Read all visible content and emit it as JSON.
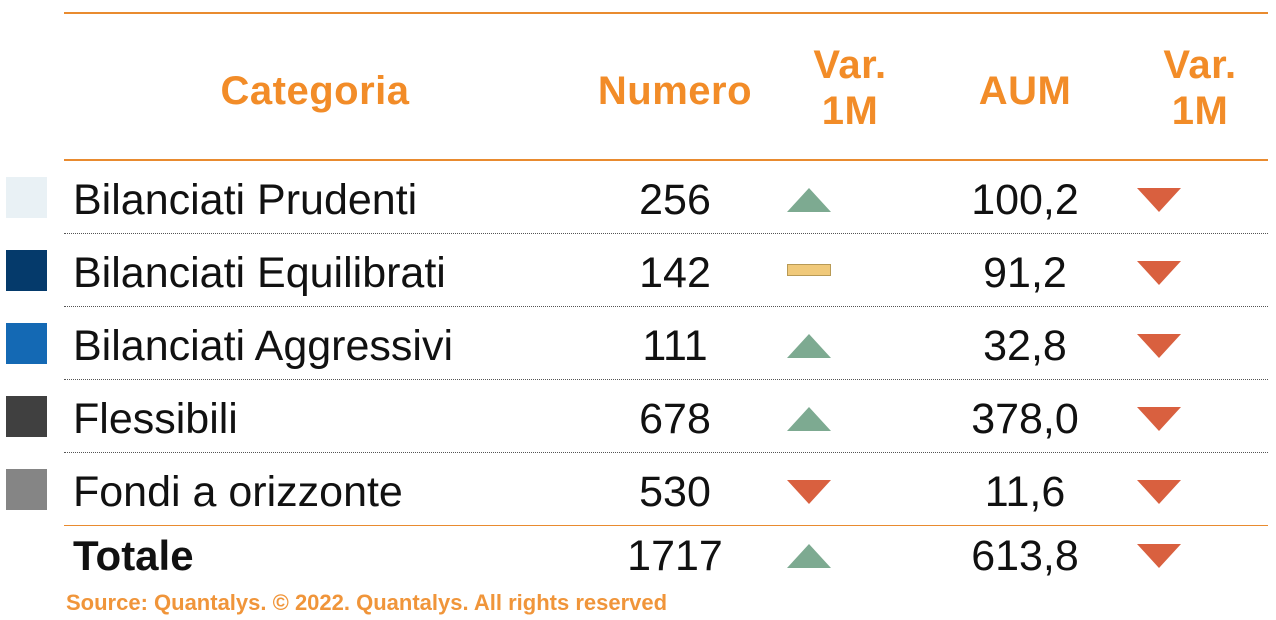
{
  "table": {
    "headers": {
      "category": "Categoria",
      "number": "Numero",
      "var_number_line1": "Var.",
      "var_number_line2": "1M",
      "aum": "AUM",
      "var_aum_line1": "Var.",
      "var_aum_line2": "1M"
    },
    "rows": [
      {
        "category": "Bilanciati Prudenti",
        "number": "256",
        "number_change": "up",
        "aum": "100,2",
        "aum_change": "down",
        "swatch_color": "#e9f1f5"
      },
      {
        "category": "Bilanciati Equilibrati",
        "number": "142",
        "number_change": "flat",
        "aum": "91,2",
        "aum_change": "down",
        "swatch_color": "#053a6b"
      },
      {
        "category": "Bilanciati Aggressivi",
        "number": "111",
        "number_change": "up",
        "aum": "32,8",
        "aum_change": "down",
        "swatch_color": "#1469b4"
      },
      {
        "category": "Flessibili",
        "number": "678",
        "number_change": "up",
        "aum": "378,0",
        "aum_change": "down",
        "swatch_color": "#404040"
      },
      {
        "category": "Fondi a orizzonte",
        "number": "530",
        "number_change": "down",
        "aum": "11,6",
        "aum_change": "down",
        "swatch_color": "#858585"
      }
    ],
    "total": {
      "category": "Totale",
      "number": "1717",
      "number_change": "up",
      "aum": "613,8",
      "aum_change": "down"
    }
  },
  "source": "Source: Quantalys. © 2022. Quantalys. All rights reserved",
  "colors": {
    "header_text": "#f28c28",
    "up": "#7daa91",
    "down": "#d9603f",
    "flat": "#f0c97a",
    "rule": "#e98b2f"
  }
}
